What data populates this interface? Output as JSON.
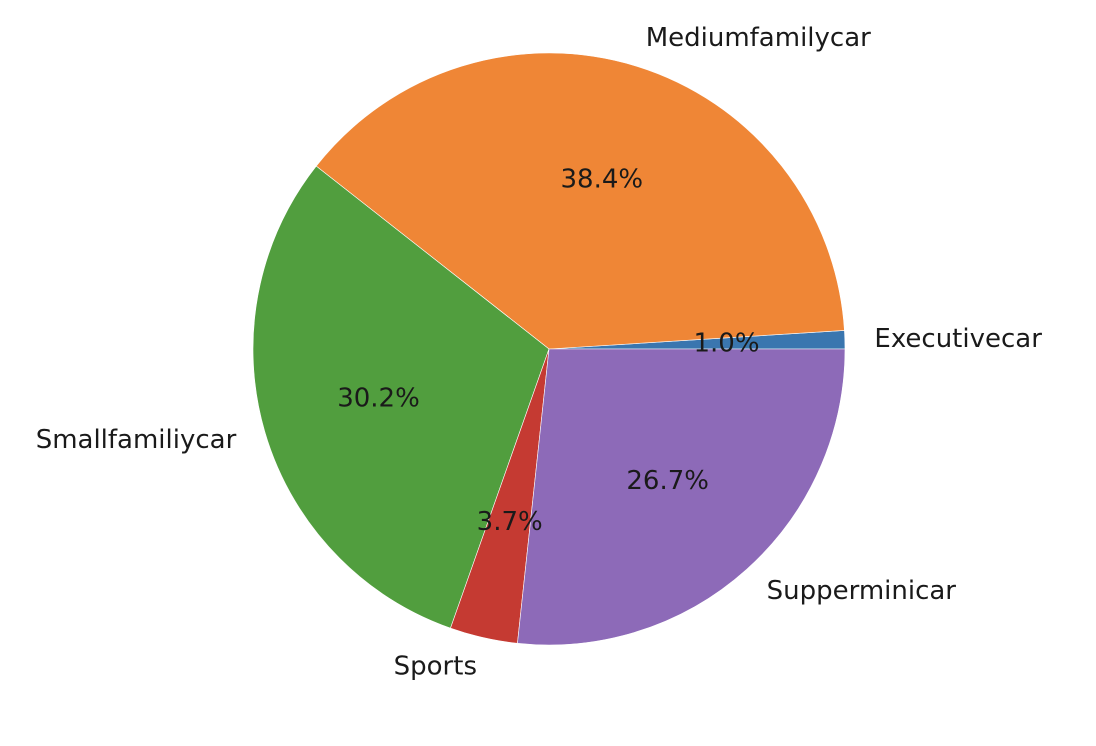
{
  "chart_data": {
    "type": "pie",
    "categories": [
      "Executivecar",
      "Mediumfamilycar",
      "Smallfamiliycar",
      "Sports",
      "Supperminicar"
    ],
    "values": [
      1.0,
      38.4,
      30.2,
      3.7,
      26.7
    ],
    "value_labels": [
      "1.0%",
      "38.4%",
      "30.2%",
      "3.7%",
      "26.7%"
    ],
    "colors": [
      "#3a76af",
      "#ef8636",
      "#519e3e",
      "#c53a32",
      "#8d6ab8"
    ],
    "start_angle_deg": 0,
    "direction": "counterclockwise"
  }
}
